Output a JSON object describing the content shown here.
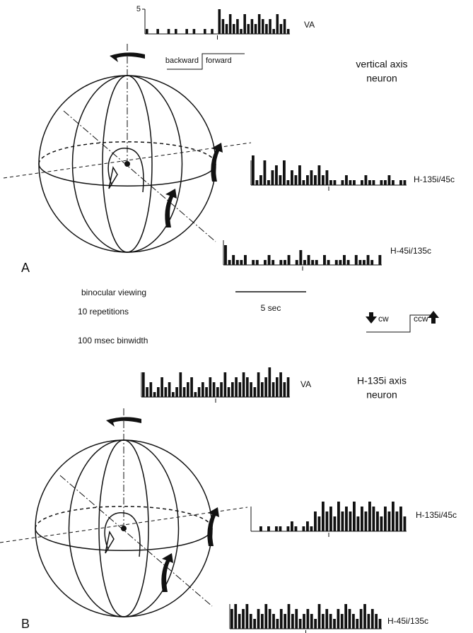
{
  "panel_a": {
    "label": "A",
    "title_lines": [
      "vertical axis",
      "neuron"
    ],
    "legend": {
      "left": "backward",
      "right": "forward"
    },
    "histograms": [
      {
        "label": "VA",
        "ylim": [
          0,
          5
        ],
        "yticks": [
          5
        ],
        "values": [
          1,
          0,
          0,
          1,
          0,
          0,
          1,
          0,
          1,
          0,
          0,
          1,
          0,
          1,
          0,
          0,
          1,
          0,
          1,
          0,
          5,
          3,
          2,
          4,
          2,
          3,
          1,
          4,
          2,
          3,
          2,
          4,
          3,
          2,
          3,
          1,
          4,
          2,
          3,
          1
        ]
      },
      {
        "label": "H-135i/45c",
        "ylim": [
          0,
          5
        ],
        "values": [
          6,
          1,
          2,
          5,
          1,
          3,
          4,
          2,
          5,
          1,
          3,
          2,
          4,
          1,
          2,
          3,
          2,
          4,
          2,
          3,
          1,
          1,
          0,
          1,
          2,
          1,
          1,
          0,
          1,
          2,
          1,
          1,
          0,
          1,
          1,
          2,
          1,
          0,
          1,
          1
        ]
      },
      {
        "label": "H-45i/135c",
        "ylim": [
          0,
          5
        ],
        "values": [
          4,
          1,
          2,
          1,
          1,
          2,
          0,
          1,
          1,
          0,
          1,
          2,
          1,
          0,
          1,
          1,
          2,
          0,
          1,
          3,
          1,
          2,
          1,
          1,
          0,
          2,
          1,
          0,
          1,
          1,
          2,
          1,
          0,
          2,
          1,
          1,
          2,
          1,
          0,
          2
        ]
      }
    ]
  },
  "notes": [
    "binocular viewing",
    "10 repetitions",
    "100 msec binwidth"
  ],
  "scale_bar": "5 sec",
  "direction_legend": {
    "left": "cw",
    "right": "ccw"
  },
  "panel_b": {
    "label": "B",
    "title_lines": [
      "H-135i axis",
      "neuron"
    ],
    "histograms": [
      {
        "label": "VA",
        "ylim": [
          0,
          5
        ],
        "values": [
          5,
          2,
          3,
          1,
          2,
          4,
          2,
          3,
          1,
          2,
          5,
          2,
          3,
          4,
          1,
          2,
          3,
          2,
          4,
          3,
          2,
          3,
          5,
          2,
          3,
          4,
          3,
          5,
          4,
          3,
          2,
          5,
          3,
          4,
          6,
          3,
          4,
          5,
          3,
          4
        ]
      },
      {
        "label": "H-135i/45c",
        "ylim": [
          0,
          5
        ],
        "values": [
          0,
          0,
          1,
          0,
          1,
          0,
          1,
          1,
          0,
          1,
          2,
          1,
          0,
          1,
          2,
          1,
          4,
          3,
          6,
          4,
          5,
          3,
          6,
          4,
          5,
          4,
          6,
          3,
          5,
          4,
          6,
          5,
          4,
          3,
          5,
          4,
          6,
          4,
          5,
          3
        ]
      },
      {
        "label": "H-45i/135c",
        "ylim": [
          0,
          5
        ],
        "values": [
          4,
          5,
          3,
          4,
          5,
          3,
          2,
          4,
          3,
          5,
          4,
          3,
          2,
          4,
          3,
          5,
          3,
          4,
          2,
          3,
          4,
          3,
          2,
          5,
          3,
          4,
          3,
          2,
          4,
          3,
          5,
          4,
          3,
          2,
          4,
          5,
          3,
          4,
          3,
          2
        ]
      }
    ]
  }
}
